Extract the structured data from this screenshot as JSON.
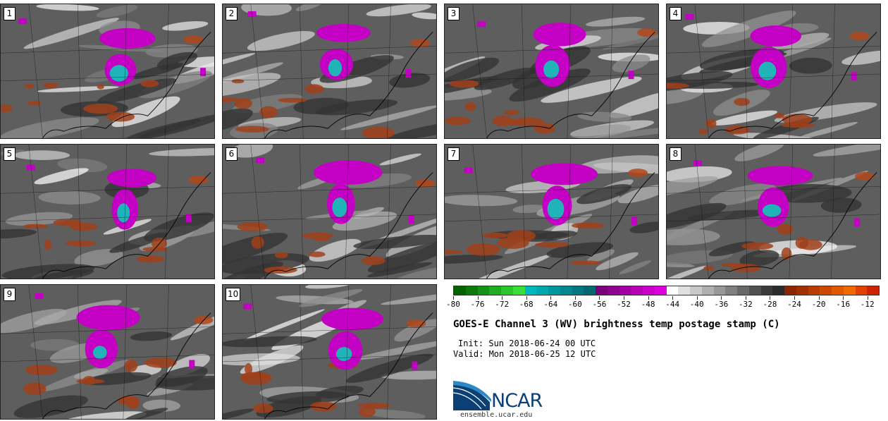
{
  "panels": [
    {
      "label": "1"
    },
    {
      "label": "2"
    },
    {
      "label": "3"
    },
    {
      "label": "4"
    },
    {
      "label": "5"
    },
    {
      "label": "6"
    },
    {
      "label": "7"
    },
    {
      "label": "8"
    },
    {
      "label": "9"
    },
    {
      "label": "10"
    }
  ],
  "colorbar": {
    "colors": [
      "#006400",
      "#0b7a0b",
      "#159215",
      "#20ac20",
      "#2bc62b",
      "#38de38",
      "#00b8c0",
      "#00a8b0",
      "#00989e",
      "#00888e",
      "#00787e",
      "#00686e",
      "#7a007a",
      "#8e008e",
      "#a200a2",
      "#b600b6",
      "#ca00ca",
      "#de00de",
      "#ffffff",
      "#e0e0e0",
      "#c8c8c8",
      "#b0b0b0",
      "#989898",
      "#808080",
      "#686868",
      "#505050",
      "#3a3a3a",
      "#2a2a2a",
      "#8b2500",
      "#a03000",
      "#b83c00",
      "#cc4a00",
      "#e05800",
      "#ef6a00",
      "#e04000",
      "#cc2200"
    ],
    "tick_labels": [
      "-80",
      "-76",
      "-72",
      "-68",
      "-64",
      "-60",
      "-56",
      "-52",
      "-48",
      "-44",
      "-40",
      "-36",
      "-32",
      "-28",
      "-24",
      "-20",
      "-16",
      "-12"
    ],
    "min": -80,
    "max": -10,
    "step": 4
  },
  "title": "GOES-E Channel 3 (WV) brightness temp postage stamp (C)",
  "init": "Init: Sun 2018-06-24 00 UTC",
  "valid": "Valid: Mon 2018-06-25 12 UTC",
  "logo": {
    "name": "NCAR",
    "colors": {
      "blue": "#0c3f73",
      "light": "#2a8ac8"
    }
  },
  "site": "ensemble.ucar.edu"
}
